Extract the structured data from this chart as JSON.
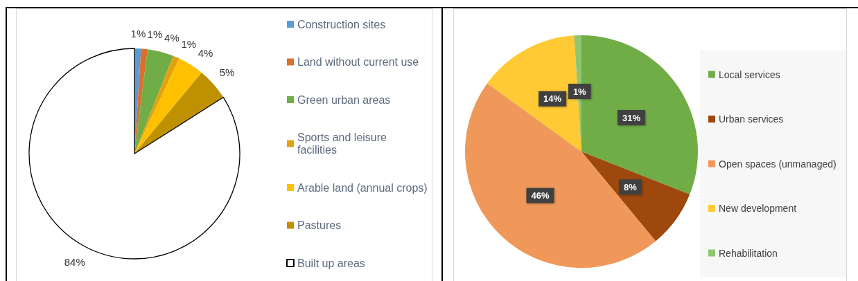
{
  "chart_data": [
    {
      "type": "pie",
      "categories": [
        "Construction sites",
        "Land without current use",
        "Green urban areas",
        "Sports and leisure facilities",
        "Arable land (annual crops)",
        "Pastures",
        "Built up areas"
      ],
      "values": [
        1,
        1,
        4,
        1,
        4,
        5,
        84
      ],
      "colors": [
        "#5b9bd5",
        "#d9702e",
        "#70ad47",
        "#e0a30f",
        "#ffc000",
        "#bf9000",
        "#ffffff"
      ],
      "value_labels": [
        "1%",
        "1%",
        "4%",
        "1%",
        "4%",
        "5%",
        "84%"
      ],
      "legend": "right"
    },
    {
      "type": "pie",
      "categories": [
        "Local services",
        "Urban services",
        "Open spaces (unmanaged)",
        "New development",
        "Rehabilitation"
      ],
      "values": [
        31,
        8,
        46,
        14,
        1
      ],
      "colors": [
        "#70ad47",
        "#9e480e",
        "#f0985a",
        "#ffca33",
        "#8fc66f"
      ],
      "value_labels": [
        "31%",
        "8%",
        "46%",
        "14%",
        "1%"
      ],
      "legend": "right"
    }
  ]
}
